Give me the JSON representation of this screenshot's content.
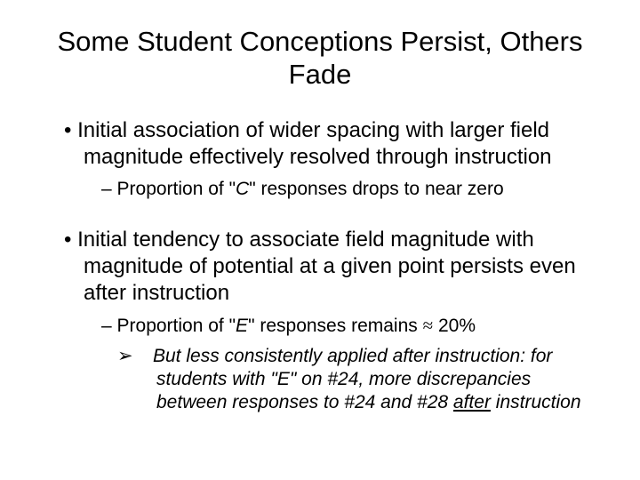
{
  "title": "Some Student Conceptions Persist, Others Fade",
  "bullet1": {
    "text": "Initial association of wider spacing with larger field magnitude effectively resolved through instruction",
    "sub1_pre": "Proportion of \"",
    "sub1_italic": "C",
    "sub1_post": "\" responses drops to near zero"
  },
  "bullet2": {
    "text": "Initial tendency to associate field magnitude with magnitude of potential at a given point persists even after instruction",
    "sub1_pre": "Proportion of \"",
    "sub1_italic": "E",
    "sub1_post": "\" responses remains ",
    "sub1_approx": "≈",
    "sub1_tail": " 20%",
    "sub2_pre": "But less consistently applied after instruction: for students with \"E\" on #24, more discrepancies between responses to #24 and #28 ",
    "sub2_underline": "after",
    "sub2_post": " instruction"
  },
  "colors": {
    "background": "#ffffff",
    "text": "#000000"
  },
  "typography": {
    "title_fontsize": 31,
    "level1_fontsize": 24,
    "level2_fontsize": 21,
    "level3_fontsize": 21,
    "font_family": "Arial"
  }
}
